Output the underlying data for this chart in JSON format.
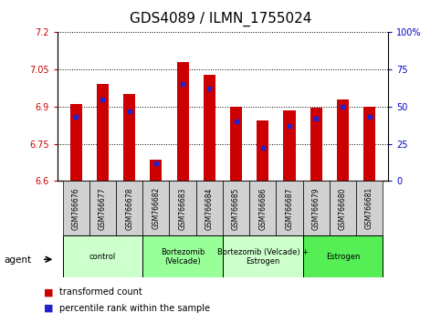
{
  "title": "GDS4089 / ILMN_1755024",
  "samples": [
    "GSM766676",
    "GSM766677",
    "GSM766678",
    "GSM766682",
    "GSM766683",
    "GSM766684",
    "GSM766685",
    "GSM766686",
    "GSM766687",
    "GSM766679",
    "GSM766680",
    "GSM766681"
  ],
  "transformed_count": [
    6.91,
    6.99,
    6.95,
    6.685,
    7.08,
    7.03,
    6.9,
    6.845,
    6.885,
    6.895,
    6.93,
    6.9
  ],
  "percentile_rank": [
    43,
    55,
    47,
    12,
    65,
    62,
    40,
    22,
    37,
    42,
    50,
    43
  ],
  "ymin": 6.6,
  "ymax": 7.2,
  "yticks": [
    6.6,
    6.75,
    6.9,
    7.05,
    7.2
  ],
  "ytick_labels": [
    "6.6",
    "6.75",
    "6.9",
    "7.05",
    "7.2"
  ],
  "right_yticks": [
    0,
    25,
    50,
    75,
    100
  ],
  "right_ytick_labels": [
    "0",
    "25",
    "50",
    "75",
    "100%"
  ],
  "bar_color": "#cc0000",
  "marker_color": "#2222cc",
  "groups": [
    {
      "label": "control",
      "start": 0,
      "end": 3,
      "color": "#ccffcc"
    },
    {
      "label": "Bortezomib\n(Velcade)",
      "start": 3,
      "end": 6,
      "color": "#99ff99"
    },
    {
      "label": "Bortezomib (Velcade) +\nEstrogen",
      "start": 6,
      "end": 9,
      "color": "#ccffcc"
    },
    {
      "label": "Estrogen",
      "start": 9,
      "end": 12,
      "color": "#55ee55"
    }
  ],
  "agent_label": "agent",
  "legend_items": [
    "transformed count",
    "percentile rank within the sample"
  ],
  "bar_width": 0.45,
  "title_fontsize": 11,
  "tick_fontsize": 7,
  "left_axis_color": "#cc0000",
  "right_axis_color": "#0000cc"
}
